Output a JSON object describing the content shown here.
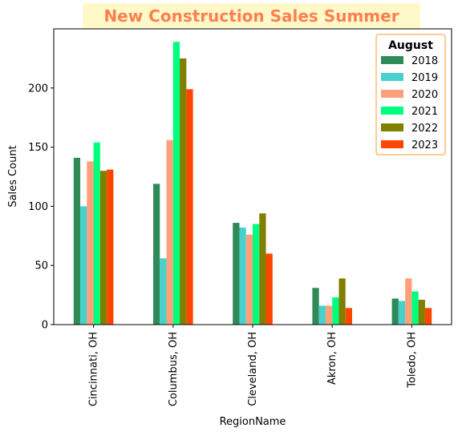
{
  "chart_data": {
    "type": "bar",
    "title": "New Construction Sales Summer",
    "title_color": "#ff7f50",
    "title_background": "#fff8c8",
    "xlabel": "RegionName",
    "ylabel": "Sales Count",
    "ylim": [
      0,
      250
    ],
    "yticks": [
      0,
      50,
      100,
      150,
      200
    ],
    "grid": false,
    "legend_title": "August",
    "legend_position": "top-right",
    "legend_border_color": "#ff9933",
    "categories": [
      "Cincinnati, OH",
      "Columbus, OH",
      "Cleveland, OH",
      "Akron, OH",
      "Toledo, OH"
    ],
    "series": [
      {
        "name": "2018",
        "color": "#2e8b57",
        "values": [
          141,
          119,
          86,
          31,
          22
        ]
      },
      {
        "name": "2019",
        "color": "#48d1cc",
        "values": [
          100,
          56,
          82,
          16,
          20
        ]
      },
      {
        "name": "2020",
        "color": "#ffa07a",
        "values": [
          138,
          156,
          76,
          16,
          39
        ]
      },
      {
        "name": "2021",
        "color": "#00ff7f",
        "values": [
          154,
          239,
          85,
          23,
          28
        ]
      },
      {
        "name": "2022",
        "color": "#808000",
        "values": [
          130,
          225,
          94,
          39,
          21
        ]
      },
      {
        "name": "2023",
        "color": "#ff4500",
        "values": [
          131,
          199,
          60,
          14,
          14
        ]
      }
    ]
  }
}
